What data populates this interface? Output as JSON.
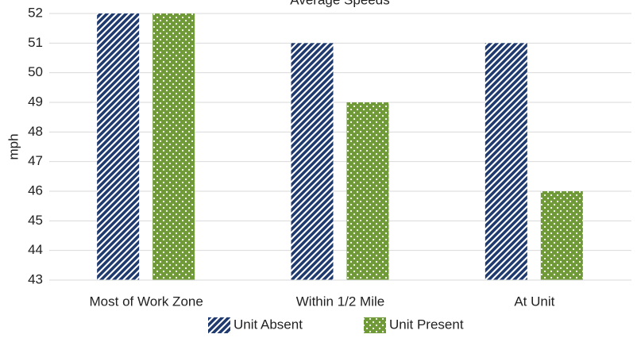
{
  "chart_data": {
    "type": "bar",
    "title": "Average Speeds",
    "y_label": "mph",
    "categories": [
      "Most of Work Zone",
      "Within 1/2 Mile",
      "At Unit"
    ],
    "series": [
      {
        "name": "Unit Absent",
        "color": "#1f3a6e",
        "values": [
          52,
          51,
          51
        ]
      },
      {
        "name": "Unit Present",
        "color": "#6f9a37",
        "values": [
          52,
          49,
          46
        ]
      }
    ],
    "ylim": [
      43,
      52
    ],
    "yticks": [
      43,
      44,
      45,
      46,
      47,
      48,
      49,
      50,
      51,
      52
    ],
    "grid": true,
    "legend": "bottom"
  }
}
